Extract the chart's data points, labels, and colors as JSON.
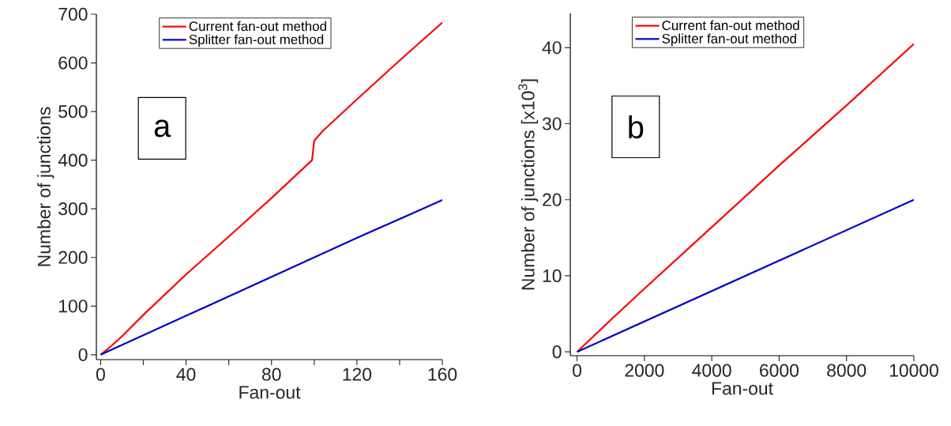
{
  "chart_data": [
    {
      "type": "line",
      "xlabel": "Fan-out",
      "ylabel": "Number of junctions",
      "xlim": [
        -2,
        160
      ],
      "ylim": [
        -10,
        700
      ],
      "xticks": [
        0,
        {
          "value": 20,
          "label": null
        },
        40,
        {
          "value": 60,
          "label": null
        },
        80,
        {
          "value": 100,
          "label": null
        },
        120,
        {
          "value": 140,
          "label": null
        },
        160
      ],
      "yticks": [
        0,
        100,
        200,
        300,
        400,
        500,
        600,
        700
      ],
      "legend": "top",
      "grid": false,
      "marker": "none",
      "line_style": "solid",
      "annotations": [
        "a"
      ],
      "series": [
        {
          "name": "Current fan-out method",
          "color": "#ff0000",
          "x": [
            0,
            5,
            10,
            20,
            40,
            60,
            80,
            99,
            100,
            104,
            120,
            140,
            160
          ],
          "values": [
            0,
            18,
            38,
            82,
            165,
            243,
            322,
            400,
            440,
            460,
            525,
            605,
            683
          ]
        },
        {
          "name": "Splitter fan-out method",
          "color": "#0000cc",
          "x": [
            0,
            40,
            80,
            120,
            160
          ],
          "values": [
            0,
            80,
            160,
            240,
            318
          ]
        }
      ]
    },
    {
      "type": "line",
      "xlabel": "Fan-out",
      "ylabel": "Number of junctions [x10$^{3}$]",
      "xlim": [
        -200,
        10000
      ],
      "ylim": [
        -0.5,
        44.5
      ],
      "xticks": [
        0,
        2000,
        4000,
        6000,
        8000,
        10000
      ],
      "yticks": [
        0,
        10,
        20,
        30,
        40
      ],
      "legend": "top",
      "grid": false,
      "marker": "none",
      "line_style": "solid",
      "annotations": [
        "b"
      ],
      "series": [
        {
          "name": "Current fan-out method",
          "color": "#ff0000",
          "x": [
            0,
            1000,
            2000,
            4000,
            6000,
            8000,
            10000
          ],
          "values": [
            0,
            4.2,
            8.3,
            16.4,
            24.5,
            32.4,
            40.5
          ]
        },
        {
          "name": "Splitter fan-out method",
          "color": "#0000cc",
          "x": [
            0,
            10000
          ],
          "values": [
            0,
            20
          ]
        }
      ]
    }
  ]
}
